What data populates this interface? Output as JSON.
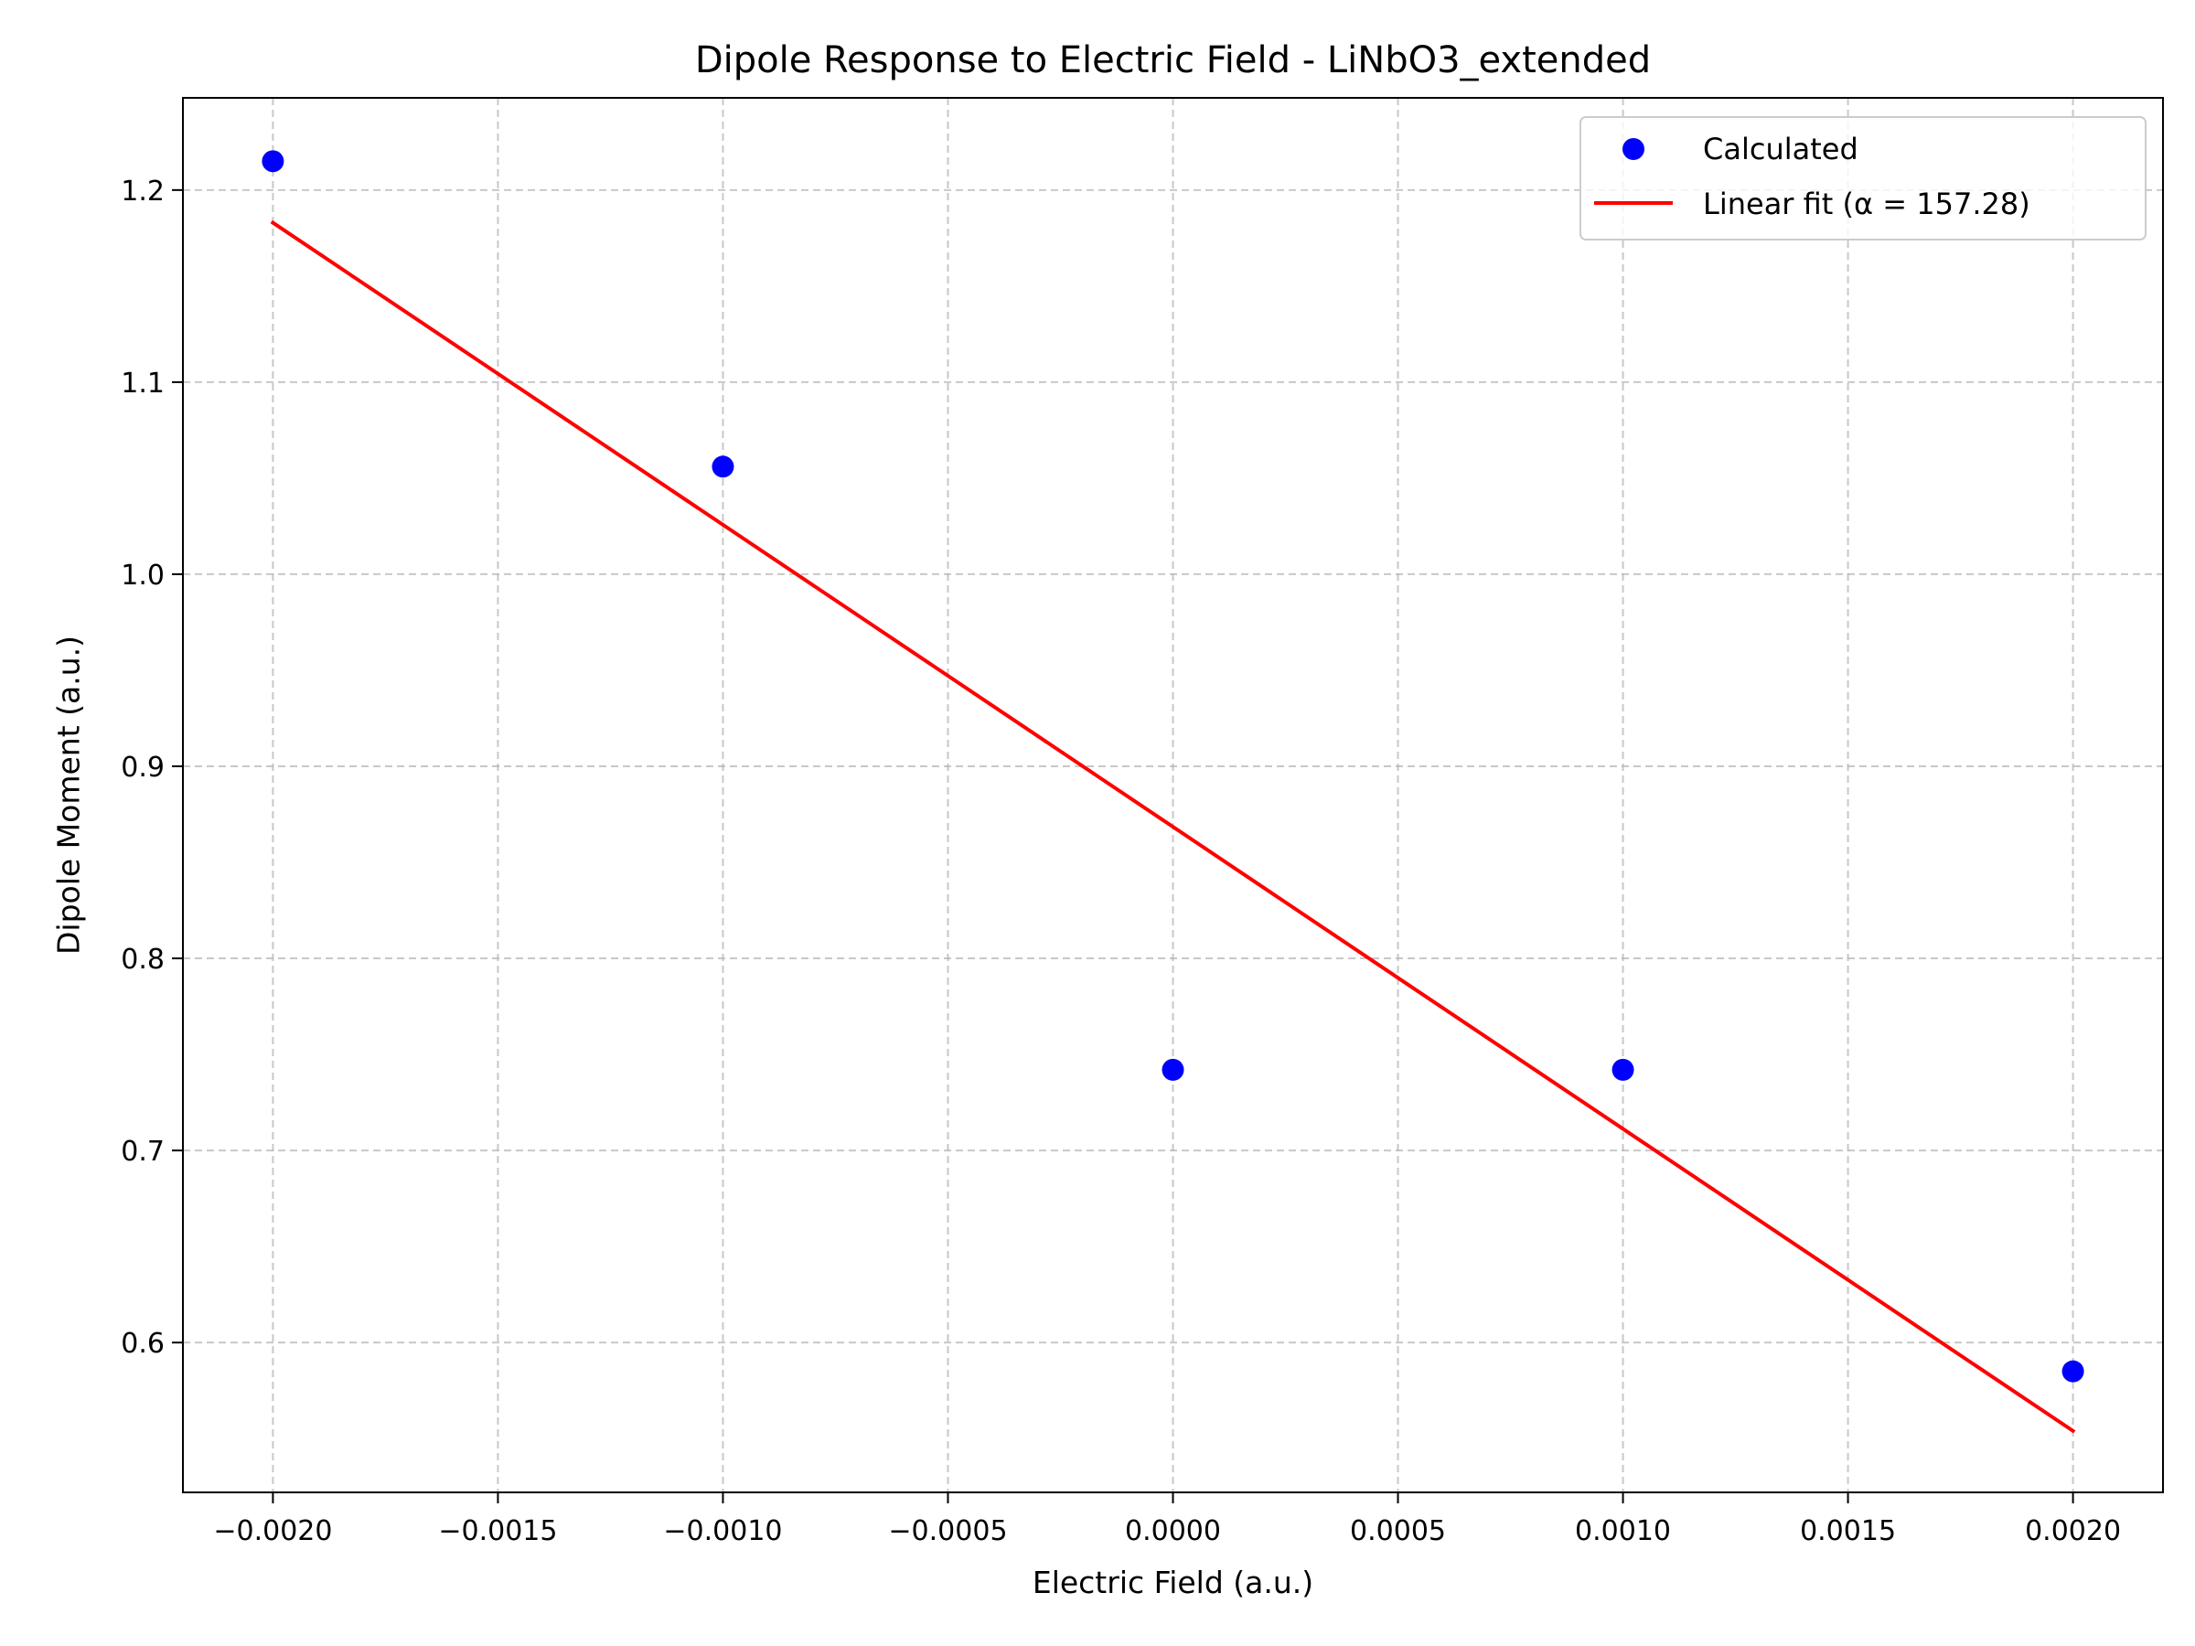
{
  "chart_data": {
    "type": "scatter",
    "title": "Dipole Response to Electric Field - LiNbO3_extended",
    "xlabel": "Electric Field (a.u.)",
    "ylabel": "Dipole Moment (a.u.)",
    "xlim": [
      -0.0022,
      0.0022
    ],
    "ylim": [
      0.522,
      1.248
    ],
    "xticks": [
      -0.002,
      -0.0015,
      -0.001,
      -0.0005,
      0.0,
      0.0005,
      0.001,
      0.0015,
      0.002
    ],
    "xtick_labels": [
      "−0.0020",
      "−0.0015",
      "−0.0010",
      "−0.0005",
      "0.0000",
      "0.0005",
      "0.0010",
      "0.0015",
      "0.0020"
    ],
    "yticks": [
      0.6,
      0.7,
      0.8,
      0.9,
      1.0,
      1.1,
      1.2
    ],
    "ytick_labels": [
      "0.6",
      "0.7",
      "0.8",
      "0.9",
      "1.0",
      "1.1",
      "1.2"
    ],
    "grid": true,
    "legend_position": "top-right",
    "series": [
      {
        "name": "Calculated",
        "kind": "scatter",
        "color": "#0000ff",
        "x": [
          -0.002,
          -0.001,
          0.0,
          0.001,
          0.002
        ],
        "y": [
          1.215,
          1.056,
          0.742,
          0.742,
          0.585
        ]
      },
      {
        "name": "Linear fit (α = 157.28)",
        "kind": "line",
        "color": "#ff0000",
        "x": [
          -0.002,
          0.002
        ],
        "y": [
          1.183,
          0.554
        ]
      }
    ]
  }
}
